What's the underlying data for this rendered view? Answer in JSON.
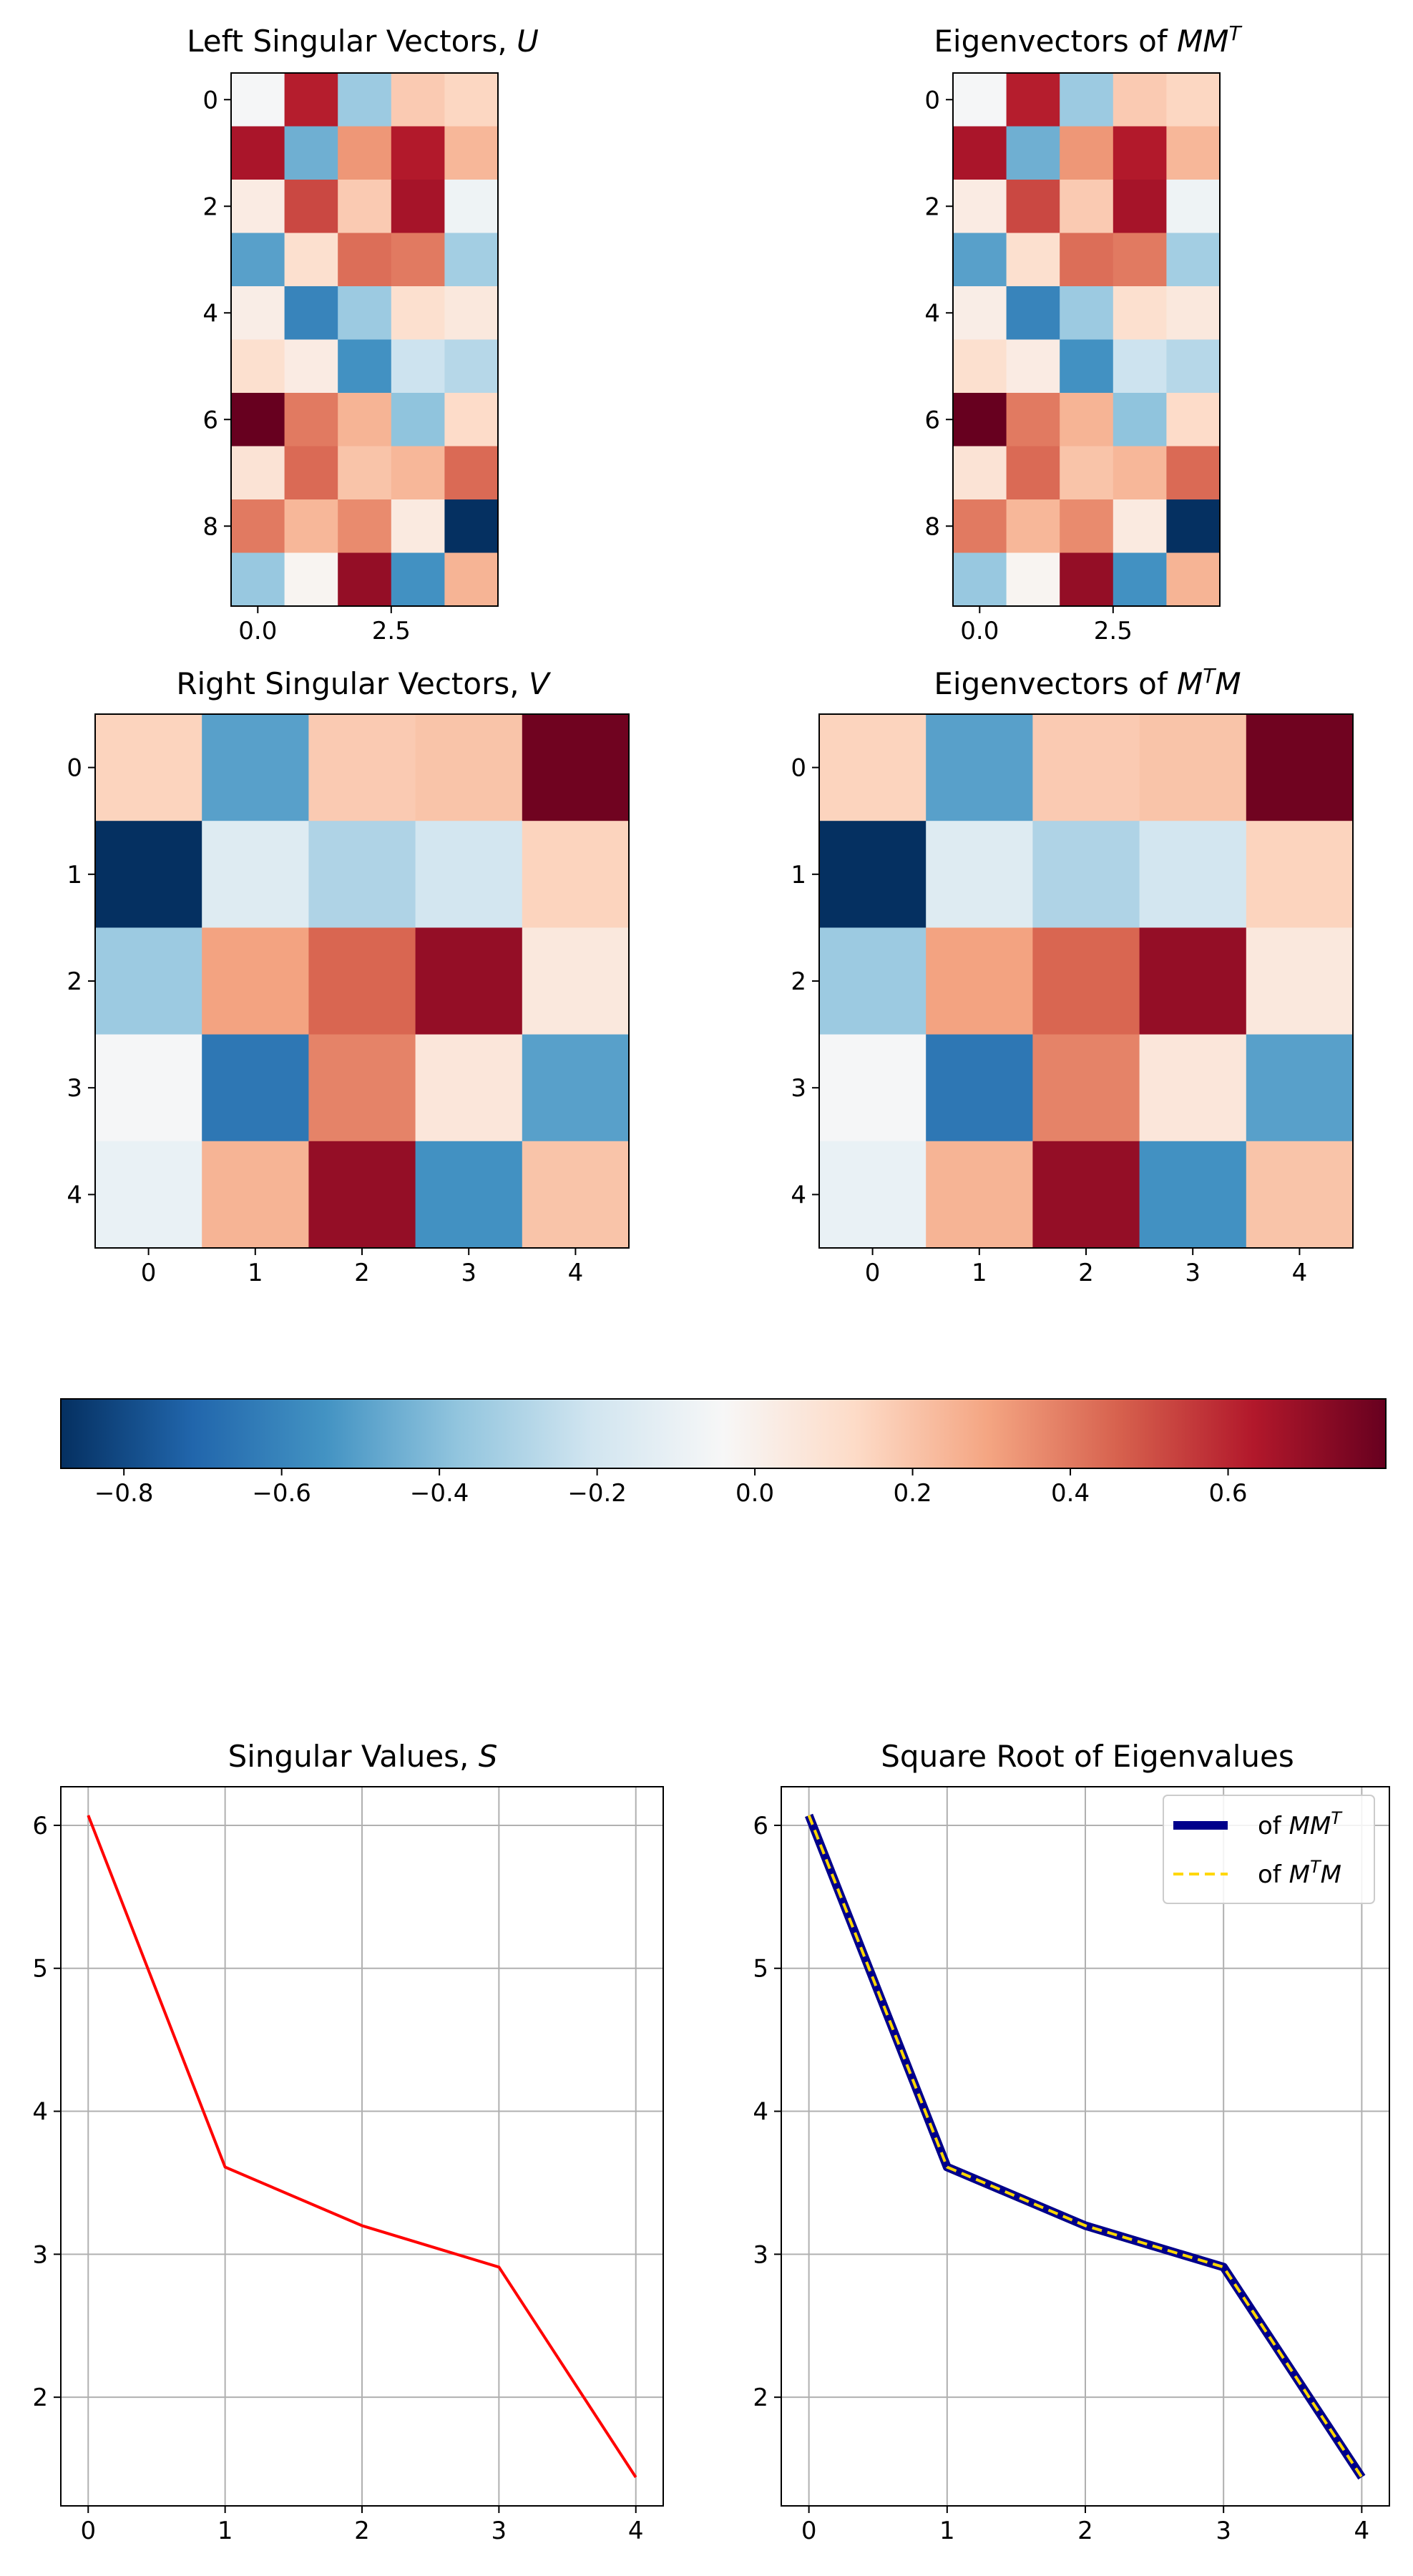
{
  "colormap": [
    "#053061",
    "#2166ac",
    "#4393c3",
    "#92c5de",
    "#d1e5f0",
    "#f7f7f7",
    "#fddbc7",
    "#f4a582",
    "#d6604d",
    "#b2182b",
    "#67001f"
  ],
  "chart_data": [
    {
      "id": "left_singular_vectors",
      "type": "heatmap",
      "title": "Left Singular Vectors, U",
      "title_main": "Left Singular Vectors, ",
      "title_math": "U",
      "rows": 10,
      "cols": 5,
      "xticks": [
        0.0,
        2.5
      ],
      "xtick_labels": [
        "0.0",
        "2.5"
      ],
      "yticks": [
        0,
        2,
        4,
        6,
        8
      ],
      "ytick_labels": [
        "0",
        "2",
        "4",
        "6",
        "8"
      ],
      "values": [
        [
          -0.05,
          0.62,
          -0.35,
          0.18,
          0.14
        ],
        [
          0.65,
          -0.45,
          0.33,
          0.63,
          0.24
        ],
        [
          0.03,
          0.52,
          0.18,
          0.66,
          -0.08
        ],
        [
          -0.5,
          0.1,
          0.43,
          0.4,
          -0.33
        ],
        [
          0.02,
          -0.6,
          -0.35,
          0.1,
          0.05
        ],
        [
          0.1,
          0.03,
          -0.55,
          -0.22,
          -0.28
        ],
        [
          0.8,
          0.4,
          0.25,
          -0.38,
          0.12
        ],
        [
          0.08,
          0.44,
          0.2,
          0.24,
          0.44
        ],
        [
          0.4,
          0.24,
          0.36,
          0.04,
          -0.88
        ],
        [
          -0.36,
          -0.02,
          0.7,
          -0.55,
          0.25
        ]
      ]
    },
    {
      "id": "eigenvectors_mmt",
      "type": "heatmap",
      "title": "Eigenvectors of MM^T",
      "title_main": "Eigenvectors of ",
      "title_math": "MM",
      "title_sup": "T",
      "rows": 10,
      "cols": 5,
      "xticks": [
        0.0,
        2.5
      ],
      "xtick_labels": [
        "0.0",
        "2.5"
      ],
      "yticks": [
        0,
        2,
        4,
        6,
        8
      ],
      "ytick_labels": [
        "0",
        "2",
        "4",
        "6",
        "8"
      ],
      "values": [
        [
          -0.05,
          0.62,
          -0.35,
          0.18,
          0.14
        ],
        [
          0.65,
          -0.45,
          0.33,
          0.63,
          0.24
        ],
        [
          0.03,
          0.52,
          0.18,
          0.66,
          -0.08
        ],
        [
          -0.5,
          0.1,
          0.43,
          0.4,
          -0.33
        ],
        [
          0.02,
          -0.6,
          -0.35,
          0.1,
          0.05
        ],
        [
          0.1,
          0.03,
          -0.55,
          -0.22,
          -0.28
        ],
        [
          0.8,
          0.4,
          0.25,
          -0.38,
          0.12
        ],
        [
          0.08,
          0.44,
          0.2,
          0.24,
          0.44
        ],
        [
          0.4,
          0.24,
          0.36,
          0.04,
          -0.88
        ],
        [
          -0.36,
          -0.02,
          0.7,
          -0.55,
          0.25
        ]
      ]
    },
    {
      "id": "right_singular_vectors",
      "type": "heatmap",
      "title": "Right Singular Vectors, V",
      "title_main": "Right Singular Vectors, ",
      "title_math": "V",
      "rows": 5,
      "cols": 5,
      "xticks": [
        0,
        1,
        2,
        3,
        4
      ],
      "xtick_labels": [
        "0",
        "1",
        "2",
        "3",
        "4"
      ],
      "yticks": [
        0,
        1,
        2,
        3,
        4
      ],
      "ytick_labels": [
        "0",
        "1",
        "2",
        "3",
        "4"
      ],
      "values": [
        [
          0.15,
          -0.5,
          0.18,
          0.2,
          0.78
        ],
        [
          -0.88,
          -0.15,
          -0.3,
          -0.2,
          0.15
        ],
        [
          -0.35,
          0.3,
          0.45,
          0.7,
          0.05
        ],
        [
          -0.05,
          -0.65,
          0.38,
          0.06,
          -0.5
        ],
        [
          -0.1,
          0.25,
          0.7,
          -0.55,
          0.2
        ]
      ]
    },
    {
      "id": "eigenvectors_mtm",
      "type": "heatmap",
      "title": "Eigenvectors of M^TM",
      "title_main": "Eigenvectors of ",
      "title_math_a": "M",
      "title_sup": "T",
      "title_math_b": "M",
      "rows": 5,
      "cols": 5,
      "xticks": [
        0,
        1,
        2,
        3,
        4
      ],
      "xtick_labels": [
        "0",
        "1",
        "2",
        "3",
        "4"
      ],
      "yticks": [
        0,
        1,
        2,
        3,
        4
      ],
      "ytick_labels": [
        "0",
        "1",
        "2",
        "3",
        "4"
      ],
      "values": [
        [
          0.15,
          -0.5,
          0.18,
          0.2,
          0.78
        ],
        [
          -0.88,
          -0.15,
          -0.3,
          -0.2,
          0.15
        ],
        [
          -0.35,
          0.3,
          0.45,
          0.7,
          0.05
        ],
        [
          -0.05,
          -0.65,
          0.38,
          0.06,
          -0.5
        ],
        [
          -0.1,
          0.25,
          0.7,
          -0.55,
          0.2
        ]
      ]
    },
    {
      "id": "colorbar",
      "type": "colorbar",
      "orientation": "horizontal",
      "range": [
        -0.88,
        0.8
      ],
      "ticks": [
        -0.8,
        -0.6,
        -0.4,
        -0.2,
        0.0,
        0.2,
        0.4,
        0.6
      ],
      "tick_labels": [
        "−0.8",
        "−0.6",
        "−0.4",
        "−0.2",
        "0.0",
        "0.2",
        "0.4",
        "0.6"
      ]
    },
    {
      "id": "singular_values",
      "type": "line",
      "title": "Singular Values, S",
      "title_main": "Singular Values, ",
      "title_math": "S",
      "x": [
        0,
        1,
        2,
        3,
        4
      ],
      "series": [
        {
          "values": [
            6.07,
            3.61,
            3.2,
            2.91,
            1.44
          ],
          "color": "#ff0000"
        }
      ],
      "xlim": [
        -0.2,
        4.2
      ],
      "ylim": [
        1.24,
        6.27
      ],
      "xticks": [
        0,
        1,
        2,
        3,
        4
      ],
      "xtick_labels": [
        "0",
        "1",
        "2",
        "3",
        "4"
      ],
      "yticks": [
        2,
        3,
        4,
        5,
        6
      ],
      "ytick_labels": [
        "2",
        "3",
        "4",
        "5",
        "6"
      ],
      "grid": true
    },
    {
      "id": "sqrt_eigenvalues",
      "type": "line",
      "title": "Square Root of Eigenvalues",
      "x": [
        0,
        1,
        2,
        3,
        4
      ],
      "series": [
        {
          "name": "of MM^T",
          "legend_prefix": "of ",
          "legend_math": "MM",
          "legend_sup": "T",
          "values": [
            6.07,
            3.61,
            3.2,
            2.91,
            1.44
          ],
          "color": "#00008b",
          "style": "solid"
        },
        {
          "name": "of M^TM",
          "legend_prefix": "of ",
          "legend_math_a": "M",
          "legend_sup": "T",
          "legend_math_b": "M",
          "values": [
            6.07,
            3.61,
            3.2,
            2.91,
            1.44
          ],
          "color": "#ffd700",
          "style": "dashed"
        }
      ],
      "xlim": [
        -0.2,
        4.2
      ],
      "ylim": [
        1.24,
        6.27
      ],
      "xticks": [
        0,
        1,
        2,
        3,
        4
      ],
      "xtick_labels": [
        "0",
        "1",
        "2",
        "3",
        "4"
      ],
      "yticks": [
        2,
        3,
        4,
        5,
        6
      ],
      "ytick_labels": [
        "2",
        "3",
        "4",
        "5",
        "6"
      ],
      "legend": "top-right",
      "grid": true
    }
  ]
}
